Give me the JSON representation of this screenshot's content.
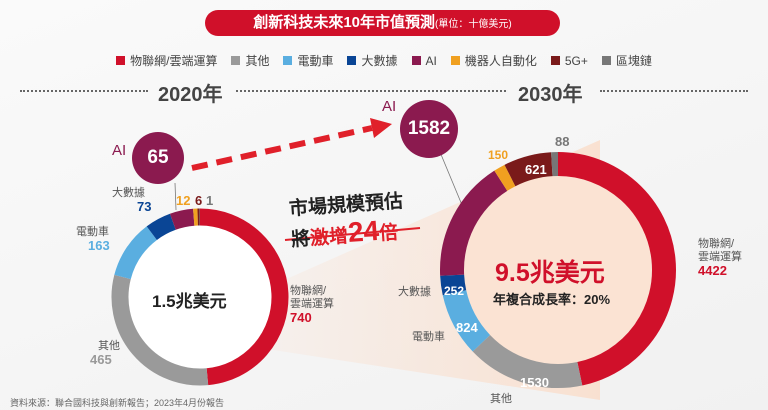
{
  "title": "創新科技未來10年市值預測",
  "unit": "(單位：十億美元)",
  "legend": [
    {
      "label": "物聯網/雲端運算",
      "color": "#d0102a"
    },
    {
      "label": "其他",
      "color": "#9a9a9a"
    },
    {
      "label": "電動車",
      "color": "#5aaee0"
    },
    {
      "label": "大數據",
      "color": "#0a4595"
    },
    {
      "label": "AI",
      "color": "#8b1a4f"
    },
    {
      "label": "機器人自動化",
      "color": "#f0a020"
    },
    {
      "label": "5G+",
      "color": "#7a1a1a"
    },
    {
      "label": "區塊鏈",
      "color": "#777777"
    }
  ],
  "callout": {
    "line1": "市場規模預估",
    "line2a": "將",
    "line2b": "激增",
    "line2c": "24",
    "line2d": "倍"
  },
  "source": "資料來源：聯合國科技與創新報告；2023年4月份報告",
  "chart_data": [
    {
      "type": "pie",
      "title": "2020年",
      "center": "1.5兆美元",
      "categories": [
        "物聯網/雲端運算",
        "其他",
        "電動車",
        "大數據",
        "AI",
        "機器人自動化",
        "5G+",
        "區塊鏈"
      ],
      "values": [
        740,
        465,
        163,
        73,
        65,
        12,
        6,
        1
      ]
    },
    {
      "type": "pie",
      "title": "2030年",
      "center": "9.5兆美元",
      "subtitle": "年複合成長率：20%",
      "categories": [
        "物聯網/雲端運算",
        "其他",
        "電動車",
        "大數據",
        "AI",
        "機器人自動化",
        "5G+",
        "區塊鏈"
      ],
      "values": [
        4422,
        1530,
        824,
        252,
        1582,
        150,
        621,
        88
      ]
    }
  ],
  "labels": {
    "iot": "物聯網/\n雲端運算",
    "other": "其他",
    "ev": "電動車",
    "bd": "大數據",
    "ai": "AI"
  }
}
